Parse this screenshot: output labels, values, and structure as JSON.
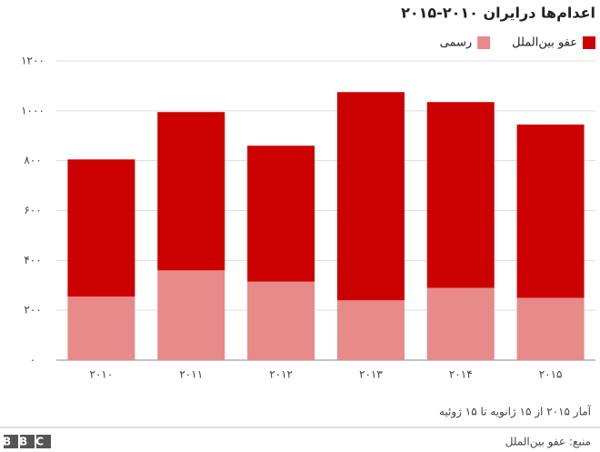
{
  "chart_data": {
    "type": "stacked_bar",
    "title": "اعدام‌ها درایران ۲۰۱۰-۲۰۱۵",
    "categories": [
      "۲۰۱۰",
      "۲۰۱۱",
      "۲۰۱۲",
      "۲۰۱۳",
      "۲۰۱۴",
      "۲۰۱۵"
    ],
    "series": [
      {
        "name": "رسمی",
        "color": "#e8898a",
        "values": [
          255,
          360,
          315,
          240,
          290,
          250
        ]
      },
      {
        "name": "عفو بین‌الملل",
        "color": "#cc0000",
        "values": [
          550,
          635,
          545,
          835,
          745,
          695
        ]
      }
    ],
    "ylim": [
      0,
      1200
    ],
    "yticks": [
      {
        "value": 0,
        "label": "۰"
      },
      {
        "value": 200,
        "label": "۲۰۰"
      },
      {
        "value": 400,
        "label": "۴۰۰"
      },
      {
        "value": 600,
        "label": "۶۰۰"
      },
      {
        "value": 800,
        "label": "۸۰۰"
      },
      {
        "value": 1000,
        "label": "۱۰۰۰"
      },
      {
        "value": 1200,
        "label": "۱۲۰۰"
      }
    ],
    "grid": true,
    "note": "آمار ۲۰۱۵ از ۱۵ ژانویه تا ۱۵ ژوئیه",
    "source": "منبع: عفو بین‌الملل",
    "logo": "BBC"
  }
}
